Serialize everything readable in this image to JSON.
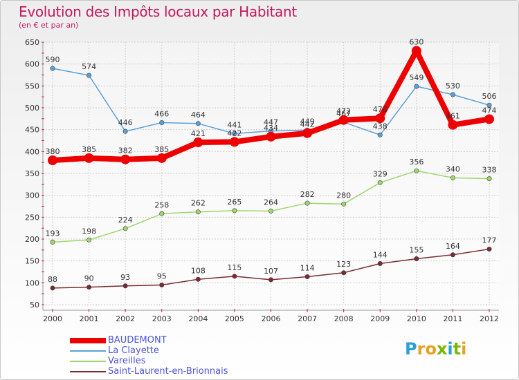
{
  "title": "Evolution des Impôts locaux par Habitant",
  "subtitle": "(en € et par an)",
  "logo": {
    "text": "Proxiti",
    "letters": [
      "P",
      "r",
      "o",
      "x",
      "i",
      "t",
      "i"
    ],
    "colors": [
      "#2aa0d8",
      "#e8a023",
      "#e8a023",
      "#7ab800",
      "#2aa0d8",
      "#7ab800",
      "#e8a023"
    ]
  },
  "chart_data": {
    "type": "line",
    "title": "Evolution des Impôts locaux par Habitant",
    "subtitle": "(en € et par an)",
    "x": [
      "2000",
      "2001",
      "2002",
      "2003",
      "2004",
      "2005",
      "2006",
      "2007",
      "2008",
      "2009",
      "2010",
      "2011",
      "2012"
    ],
    "ylim": [
      50,
      650
    ],
    "yticks": [
      50,
      100,
      150,
      200,
      250,
      300,
      350,
      400,
      450,
      500,
      550,
      600,
      650
    ],
    "grid": true,
    "legend_position": "bottom-left",
    "series": [
      {
        "name": "BAUDEMONT",
        "color": "#ee0000",
        "values": [
          380,
          385,
          382,
          385,
          421,
          422,
          434,
          442,
          472,
          476,
          630,
          461,
          474
        ],
        "labels": [
          "380",
          "385",
          "382",
          "385",
          "421",
          "",
          "",
          "",
          "",
          "",
          "630",
          "461",
          "474"
        ]
      },
      {
        "name": "La Clayette",
        "color": "#5aa0d8",
        "values": [
          590,
          574,
          446,
          466,
          464,
          441,
          447,
          449,
          467,
          438,
          549,
          530,
          506
        ],
        "labels": [
          "590",
          "574",
          "446",
          "466",
          "464",
          "441",
          "447",
          "449",
          "467",
          "438",
          "549",
          "530",
          "506"
        ]
      },
      {
        "name": "Vareilles",
        "color": "#9dd76a",
        "values": [
          193,
          198,
          224,
          258,
          262,
          265,
          264,
          282,
          280,
          329,
          356,
          340,
          338
        ],
        "labels": [
          "193",
          "198",
          "224",
          "258",
          "262",
          "265",
          "264",
          "282",
          "280",
          "329",
          "356",
          "340",
          "338"
        ]
      },
      {
        "name": "Saint-Laurent-en-Brionnais",
        "color": "#7b2a30",
        "values": [
          88,
          90,
          93,
          95,
          108,
          115,
          107,
          114,
          123,
          144,
          155,
          164,
          177
        ],
        "labels": [
          "88",
          "90",
          "93",
          "95",
          "108",
          "115",
          "107",
          "114",
          "123",
          "144",
          "155",
          "164",
          "177"
        ]
      }
    ],
    "extra_labels": [
      {
        "series": 0,
        "index": 5,
        "text": "422"
      },
      {
        "series": 0,
        "index": 6,
        "text": "434"
      },
      {
        "series": 0,
        "index": 7,
        "text": "442"
      },
      {
        "series": 0,
        "index": 8,
        "text": "472"
      },
      {
        "series": 0,
        "index": 9,
        "text": "476"
      }
    ]
  }
}
